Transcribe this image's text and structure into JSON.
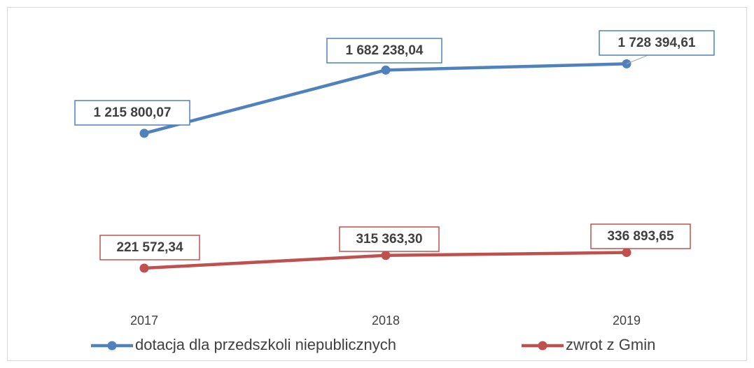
{
  "chart_data": {
    "type": "line",
    "categories": [
      "2017",
      "2018",
      "2019"
    ],
    "series": [
      {
        "name": "dotacja dla przedszkoli niepublicznych",
        "color": "#4f81bd",
        "values": [
          1215800.07,
          1682238.04,
          1728394.61
        ],
        "value_labels": [
          "1 215 800,07",
          "1 682 238,04",
          "1 728 394,61"
        ]
      },
      {
        "name": "zwrot z Gmin",
        "color": "#c0504d",
        "values": [
          221572.34,
          315363.3,
          336893.65
        ],
        "value_labels": [
          "221 572,34",
          "315 363,30",
          "336 893,65"
        ]
      }
    ],
    "legend": "bottom"
  }
}
